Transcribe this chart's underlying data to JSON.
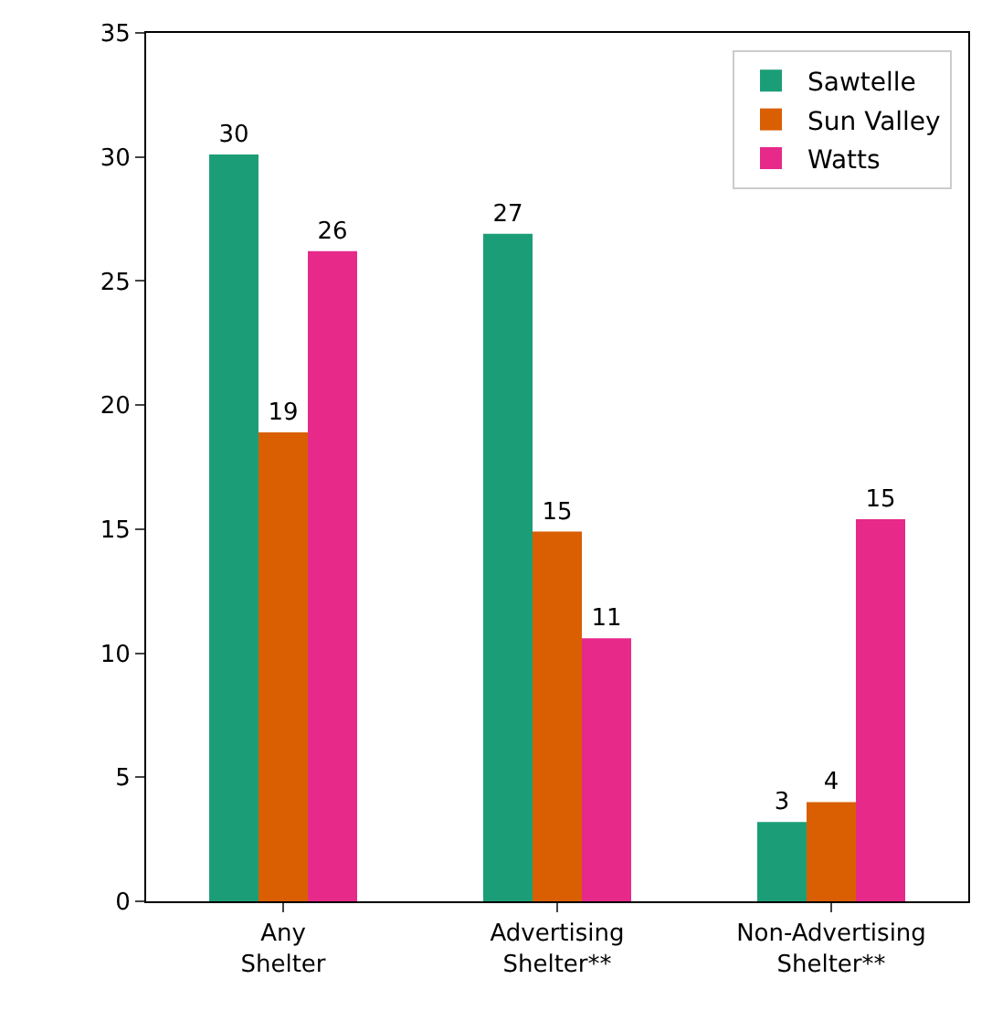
{
  "chart_data": {
    "type": "bar",
    "categories": [
      "Any\nShelter",
      "Advertising\nShelter**",
      "Non-Advertising\nShelter**"
    ],
    "series": [
      {
        "name": "Sawtelle",
        "color": "#1b9e77",
        "values": [
          30.1,
          26.9,
          3.2
        ],
        "value_labels": [
          "30",
          "27",
          "3"
        ]
      },
      {
        "name": "Sun Valley",
        "color": "#d95f02",
        "values": [
          18.9,
          14.9,
          4.0
        ],
        "value_labels": [
          "19",
          "15",
          "4"
        ]
      },
      {
        "name": "Watts",
        "color": "#e7298a",
        "values": [
          26.2,
          10.6,
          15.4
        ],
        "value_labels": [
          "26",
          "11",
          "15"
        ]
      }
    ],
    "ylim": [
      0,
      35
    ],
    "yticks": [
      0,
      5,
      10,
      15,
      20,
      25,
      30,
      35
    ],
    "legend": "top right"
  }
}
